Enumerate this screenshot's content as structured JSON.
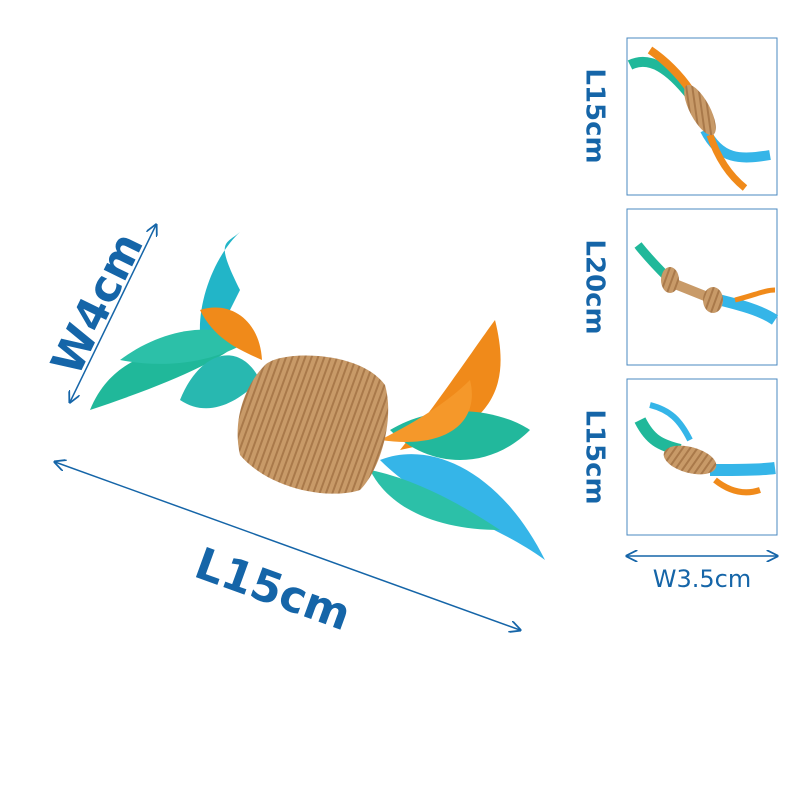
{
  "main": {
    "width_label": "W4cm",
    "length_label": "L15cm"
  },
  "variants": [
    {
      "label": "L15cm"
    },
    {
      "label": "L20cm"
    },
    {
      "label": "L15cm"
    }
  ],
  "variant_width_label": "W3.5cm"
}
